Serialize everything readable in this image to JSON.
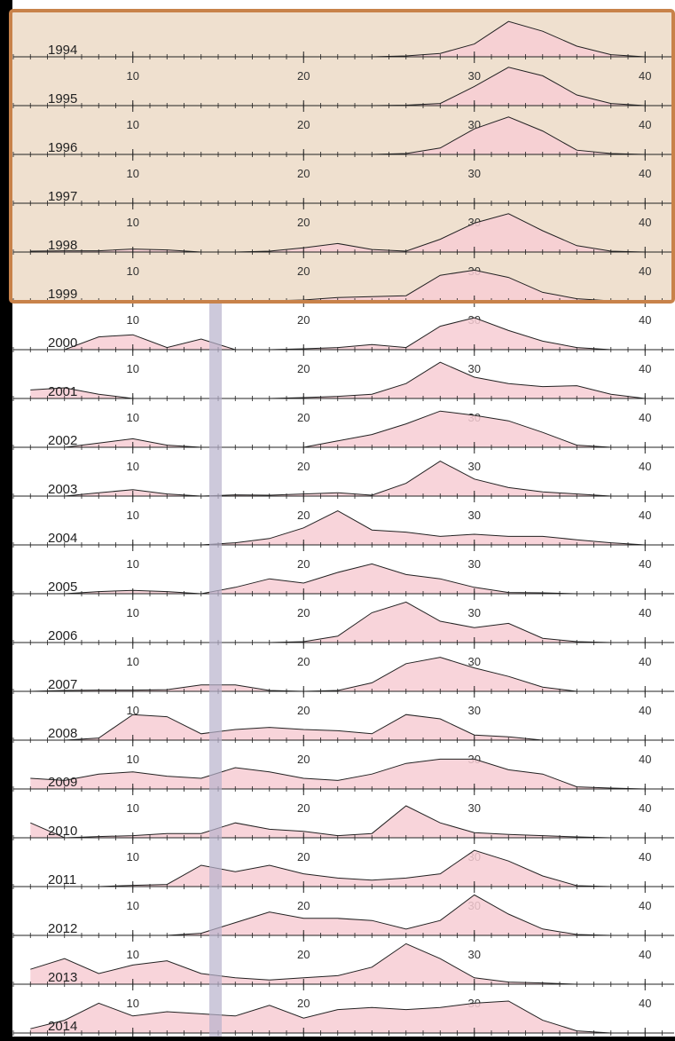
{
  "chart_data": {
    "type": "ridgeline",
    "x": [
      4,
      6,
      8,
      10,
      12,
      14,
      16,
      18,
      20,
      22,
      24,
      26,
      28,
      30,
      32,
      34,
      36,
      38,
      40
    ],
    "xlim": [
      3,
      41.7
    ],
    "xticks": [
      10,
      20,
      30,
      40
    ],
    "ylim": [
      0,
      1
    ],
    "color": "#f7cdd3",
    "series": [
      {
        "name": "1994",
        "values": [
          0,
          0,
          0,
          0,
          0,
          0,
          0,
          0,
          0,
          0,
          0,
          0.02,
          0.08,
          0.3,
          0.83,
          0.6,
          0.25,
          0.05,
          0
        ]
      },
      {
        "name": "1995",
        "values": [
          0,
          0,
          0,
          0,
          0,
          0,
          0,
          0,
          0,
          0,
          0,
          0.01,
          0.05,
          0.45,
          0.9,
          0.7,
          0.25,
          0.05,
          0
        ]
      },
      {
        "name": "1996",
        "values": [
          0,
          0,
          0,
          0,
          0,
          0,
          0,
          0,
          0,
          0,
          0,
          0.02,
          0.15,
          0.6,
          0.88,
          0.55,
          0.1,
          0.02,
          0
        ]
      },
      {
        "name": "1997",
        "values": [
          0,
          0,
          0,
          0,
          0,
          0,
          0,
          0,
          0,
          0,
          0,
          0,
          0,
          0,
          0,
          0,
          0,
          0,
          0
        ]
      },
      {
        "name": "1998",
        "values": [
          0.02,
          0.03,
          0.03,
          0.07,
          0.05,
          0,
          0,
          0.02,
          0.1,
          0.2,
          0.06,
          0.02,
          0.3,
          0.68,
          0.9,
          0.5,
          0.15,
          0.02,
          0
        ]
      },
      {
        "name": "1999",
        "values": [
          0,
          0,
          0,
          0,
          0,
          0,
          0,
          0,
          0.02,
          0.08,
          0.1,
          0.12,
          0.6,
          0.72,
          0.55,
          0.2,
          0.05,
          0,
          0
        ]
      },
      {
        "name": "2000",
        "values": [
          0,
          0,
          0.3,
          0.35,
          0.05,
          0.25,
          0,
          0,
          0.02,
          0.05,
          0.12,
          0.05,
          0.55,
          0.75,
          0.45,
          0.2,
          0.05,
          0,
          0
        ]
      },
      {
        "name": "2001",
        "values": [
          0.2,
          0.25,
          0.1,
          0,
          0,
          0,
          0,
          0,
          0.02,
          0.05,
          0.1,
          0.35,
          0.85,
          0.5,
          0.35,
          0.28,
          0.3,
          0.1,
          0
        ]
      },
      {
        "name": "2002",
        "values": [
          0,
          0,
          0.1,
          0.2,
          0.05,
          0,
          0,
          0,
          0,
          0.15,
          0.3,
          0.55,
          0.85,
          0.75,
          0.62,
          0.35,
          0.05,
          0,
          0
        ]
      },
      {
        "name": "2003",
        "values": [
          0,
          0,
          0.08,
          0.15,
          0.05,
          0,
          0.03,
          0.02,
          0.05,
          0.08,
          0.02,
          0.3,
          0.82,
          0.4,
          0.2,
          0.1,
          0.05,
          0,
          0
        ]
      },
      {
        "name": "2004",
        "values": [
          0,
          0,
          0,
          0,
          0,
          0,
          0.05,
          0.15,
          0.4,
          0.8,
          0.35,
          0.3,
          0.2,
          0.25,
          0.2,
          0.2,
          0.12,
          0.05,
          0
        ]
      },
      {
        "name": "2005",
        "values": [
          0,
          0,
          0.05,
          0.08,
          0.05,
          0,
          0.15,
          0.35,
          0.25,
          0.5,
          0.7,
          0.45,
          0.35,
          0.15,
          0.03,
          0.02,
          0,
          0,
          0
        ]
      },
      {
        "name": "2006",
        "values": [
          0,
          0,
          0,
          0,
          0,
          0,
          0,
          0,
          0.02,
          0.15,
          0.7,
          0.95,
          0.5,
          0.35,
          0.45,
          0.1,
          0.02,
          0,
          0
        ]
      },
      {
        "name": "2007",
        "values": [
          0,
          0.02,
          0.03,
          0.03,
          0.04,
          0.15,
          0.15,
          0.02,
          0,
          0.02,
          0.2,
          0.65,
          0.8,
          0.55,
          0.35,
          0.1,
          0,
          0,
          0
        ]
      },
      {
        "name": "2008",
        "values": [
          0,
          0,
          0.05,
          0.6,
          0.55,
          0.15,
          0.25,
          0.3,
          0.25,
          0.22,
          0.15,
          0.6,
          0.5,
          0.12,
          0.08,
          0,
          0,
          0,
          0
        ]
      },
      {
        "name": "2009",
        "values": [
          0.25,
          0.2,
          0.35,
          0.4,
          0.3,
          0.25,
          0.5,
          0.4,
          0.25,
          0.2,
          0.35,
          0.6,
          0.7,
          0.7,
          0.45,
          0.35,
          0.05,
          0.02,
          0
        ]
      },
      {
        "name": "2010",
        "values": [
          0.35,
          0,
          0.03,
          0.05,
          0.1,
          0.1,
          0.35,
          0.2,
          0.15,
          0.05,
          0.1,
          0.75,
          0.35,
          0.12,
          0.08,
          0.05,
          0.02,
          0,
          0
        ]
      },
      {
        "name": "2011",
        "values": [
          0,
          0,
          0,
          0.03,
          0.05,
          0.5,
          0.35,
          0.5,
          0.3,
          0.2,
          0.15,
          0.2,
          0.3,
          0.85,
          0.6,
          0.25,
          0.02,
          0,
          0
        ]
      },
      {
        "name": "2012",
        "values": [
          0,
          0,
          0,
          0,
          0,
          0.05,
          0.3,
          0.55,
          0.4,
          0.4,
          0.35,
          0.15,
          0.35,
          0.95,
          0.5,
          0.15,
          0.02,
          0,
          0
        ]
      },
      {
        "name": "2013",
        "values": [
          0.35,
          0.6,
          0.25,
          0.45,
          0.55,
          0.25,
          0.15,
          0.1,
          0.15,
          0.2,
          0.4,
          0.95,
          0.6,
          0.15,
          0.05,
          0.03,
          0,
          0,
          0
        ]
      },
      {
        "name": "2014",
        "values": [
          0.1,
          0.3,
          0.7,
          0.4,
          0.5,
          0.45,
          0.4,
          0.65,
          0.35,
          0.55,
          0.6,
          0.55,
          0.6,
          0.7,
          0.75,
          0.3,
          0.05,
          0,
          0
        ]
      }
    ]
  }
}
